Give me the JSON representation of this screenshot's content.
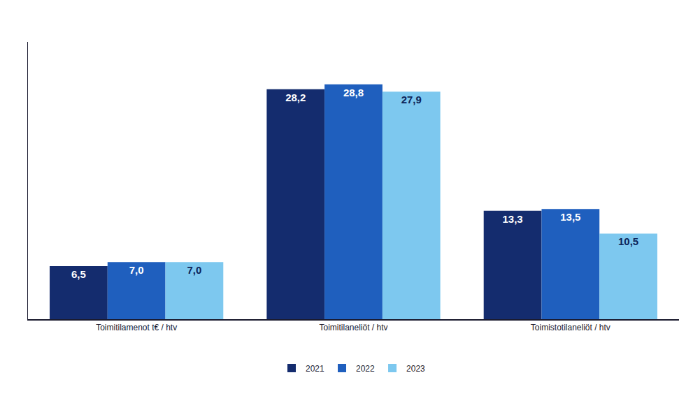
{
  "chart_data": {
    "type": "bar",
    "categories": [
      "Toimitilamenot t€ / htv",
      "Toimitilaneliöt / htv",
      "Toimistotilaneliöt / htv"
    ],
    "series": [
      {
        "name": "2021",
        "color": "#142c6e",
        "values": [
          6.5,
          28.2,
          13.3
        ],
        "value_labels": [
          "6,5",
          "28,2",
          "13,3"
        ]
      },
      {
        "name": "2022",
        "color": "#1f5fbe",
        "values": [
          7.0,
          28.8,
          13.5
        ],
        "value_labels": [
          "7,0",
          "28,8",
          "13,5"
        ]
      },
      {
        "name": "2023",
        "color": "#7dc8ef",
        "values": [
          7.0,
          27.9,
          10.5
        ],
        "value_labels": [
          "7,0",
          "27,9",
          "10,5"
        ]
      }
    ],
    "ylim": [
      0,
      34
    ],
    "yticks": [],
    "grid": false,
    "legend": "bottom",
    "data_labels": true,
    "tick_labels": "x"
  }
}
